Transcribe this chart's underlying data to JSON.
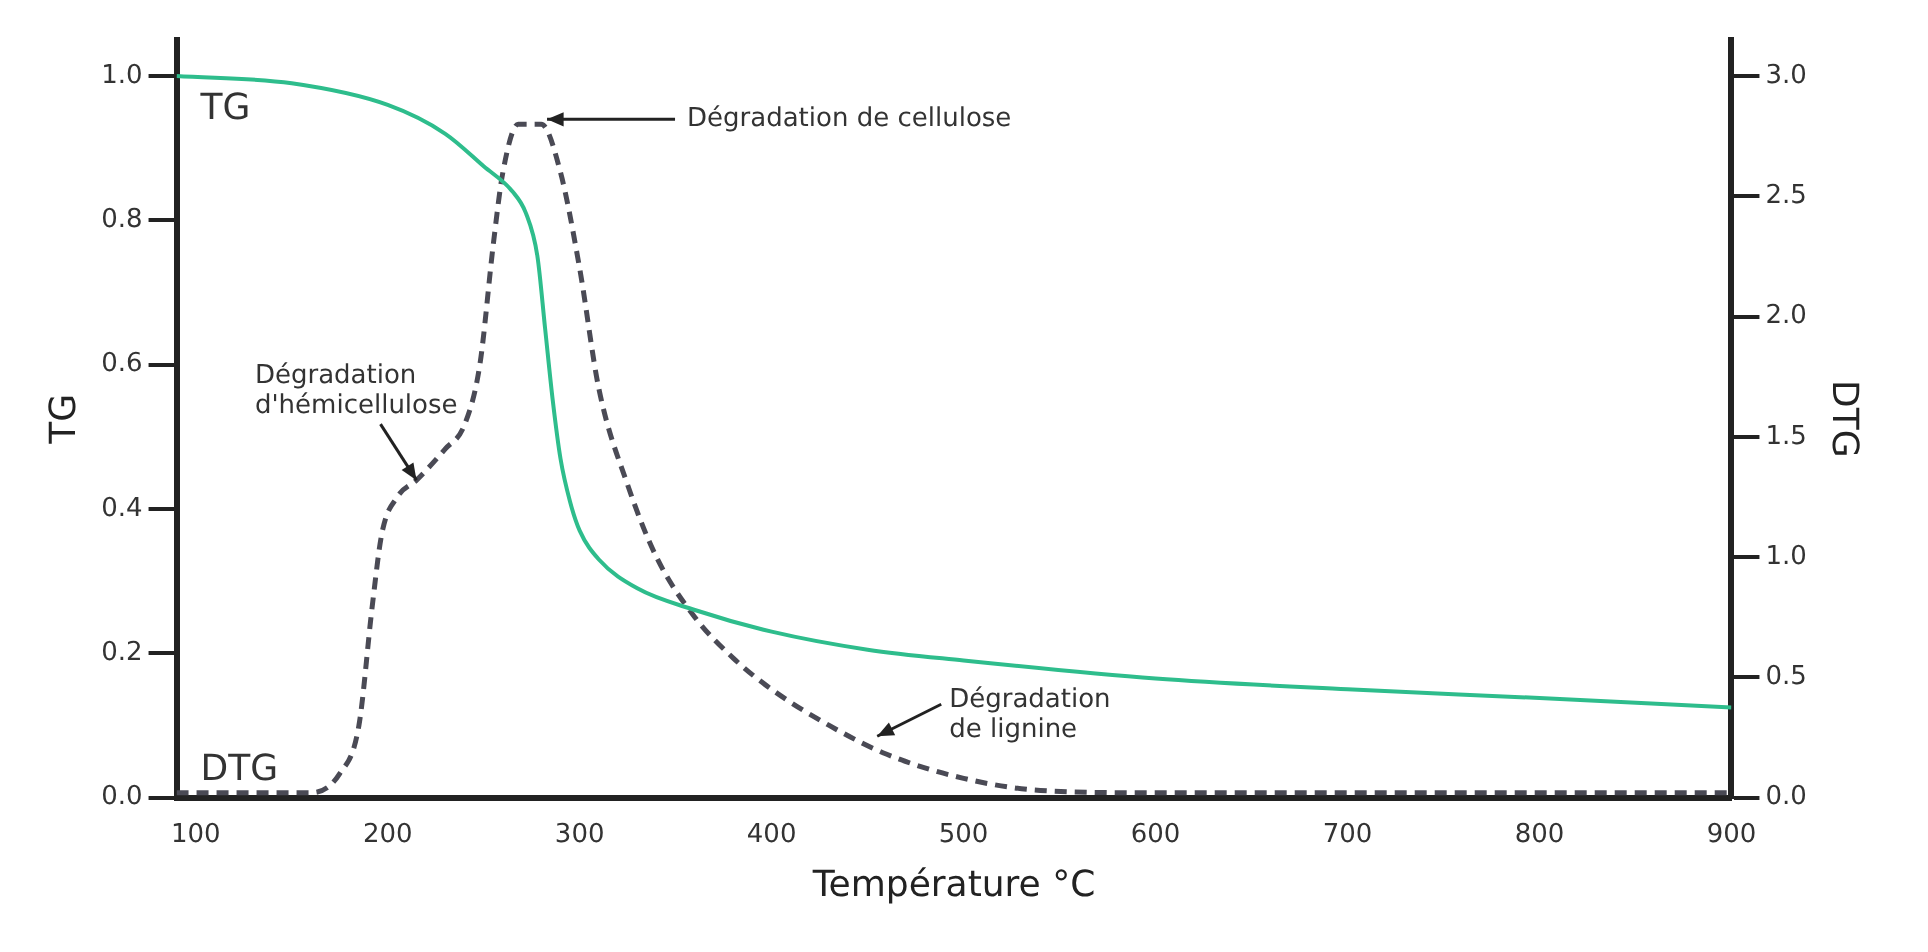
{
  "chart_data": {
    "type": "line",
    "xlabel": "Température °C",
    "ylabel": "TG",
    "y2label": "DTG",
    "xlim": [
      90,
      900
    ],
    "xticks": [
      100,
      200,
      300,
      400,
      500,
      600,
      700,
      800,
      900
    ],
    "ylim": [
      0,
      1.05
    ],
    "yticks": [
      {
        "value": 0,
        "label": "0.0"
      },
      0.2,
      0.4,
      0.6,
      0.8,
      {
        "value": 1,
        "label": "1.0"
      }
    ],
    "y2lim": [
      0,
      3.15
    ],
    "y2ticks": [
      {
        "value": 0,
        "label": "0.0"
      },
      0.5,
      {
        "value": 1,
        "label": "1.0"
      },
      1.5,
      {
        "value": 2,
        "label": "2.0"
      },
      2.5,
      {
        "value": 3,
        "label": "3.0"
      }
    ],
    "grid": false,
    "legend": false,
    "marker": "none",
    "series": [
      {
        "name": "TG",
        "color": "#2ebd8c",
        "line_style": "solid",
        "x": [
          90,
          150,
          200,
          230,
          250,
          265,
          272,
          278,
          282,
          286,
          290,
          295,
          300,
          310,
          330,
          360,
          400,
          450,
          500,
          600,
          700,
          800,
          900
        ],
        "values": [
          1.0,
          0.99,
          0.96,
          0.92,
          0.875,
          0.84,
          0.81,
          0.75,
          0.65,
          0.55,
          0.47,
          0.41,
          0.37,
          0.33,
          0.29,
          0.26,
          0.23,
          0.205,
          0.19,
          0.165,
          0.15,
          0.138,
          0.125
        ]
      },
      {
        "name": "DTG",
        "color": "#4a4a55",
        "line_style": "dashed",
        "axis": "y2",
        "x": [
          90,
          160,
          175,
          185,
          192,
          197,
          205,
          215,
          230,
          240,
          248,
          255,
          260,
          268,
          280,
          290,
          300,
          310,
          325,
          340,
          360,
          380,
          400,
          430,
          460,
          500,
          540,
          600,
          900
        ],
        "values": [
          0.02,
          0.02,
          0.1,
          0.3,
          0.8,
          1.1,
          1.25,
          1.32,
          1.45,
          1.55,
          1.8,
          2.3,
          2.6,
          2.8,
          2.8,
          2.6,
          2.2,
          1.7,
          1.3,
          1.0,
          0.75,
          0.58,
          0.45,
          0.3,
          0.18,
          0.08,
          0.03,
          0.02,
          0.02
        ]
      }
    ],
    "annotations": [
      {
        "text": "Dégradation de cellulose",
        "x": 283,
        "y": 0.94
      },
      {
        "text": "Dégradation\nd'hémicellulose",
        "x": 215,
        "y": 0.44
      },
      {
        "text": "Dégradation\nde lignine",
        "x": 455,
        "y": 0.085
      }
    ]
  }
}
